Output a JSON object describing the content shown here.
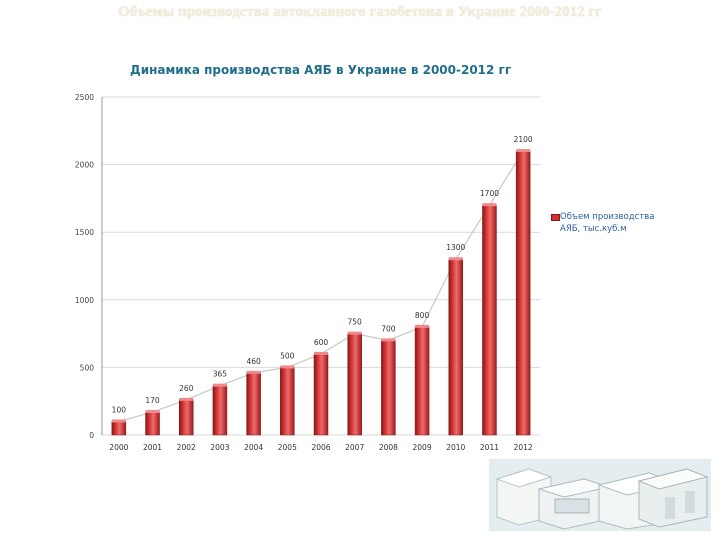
{
  "slide": {
    "title": "Объемы производства автоклавного газобетона в Украине 2000-2012 гг"
  },
  "colors": {
    "bar": "#d42e2e",
    "bar_dark": "#8b1515",
    "trend": "#c8c8c8",
    "grid": "#d9d9d9",
    "title": "#1f6f8b",
    "legend": "#2a5f9e"
  },
  "chart_data": {
    "type": "bar",
    "title": "Динамика производства АЯБ в Украине в 2000-2012 гг",
    "categories": [
      "2000",
      "2001",
      "2002",
      "2003",
      "2004",
      "2005",
      "2006",
      "2007",
      "2008",
      "2009",
      "2010",
      "2011",
      "2012"
    ],
    "series": [
      {
        "name": "Объем производства АЯБ, тыс.куб.м",
        "values": [
          100,
          170,
          260,
          365,
          460,
          500,
          600,
          750,
          700,
          800,
          1300,
          1700,
          2100
        ]
      }
    ],
    "data_labels": [
      "100",
      "170",
      "260",
      "365",
      "460",
      "500",
      "600",
      "750",
      "700",
      "800",
      "1300",
      "1700",
      "2100"
    ],
    "y_ticks": [
      "0",
      "500",
      "1000",
      "1500",
      "2000",
      "2500"
    ],
    "ylim": [
      0,
      2500
    ],
    "grid": true,
    "trendline": true,
    "legend_position": "right"
  },
  "image": {
    "subject": "aerated-concrete-blocks-photo"
  }
}
